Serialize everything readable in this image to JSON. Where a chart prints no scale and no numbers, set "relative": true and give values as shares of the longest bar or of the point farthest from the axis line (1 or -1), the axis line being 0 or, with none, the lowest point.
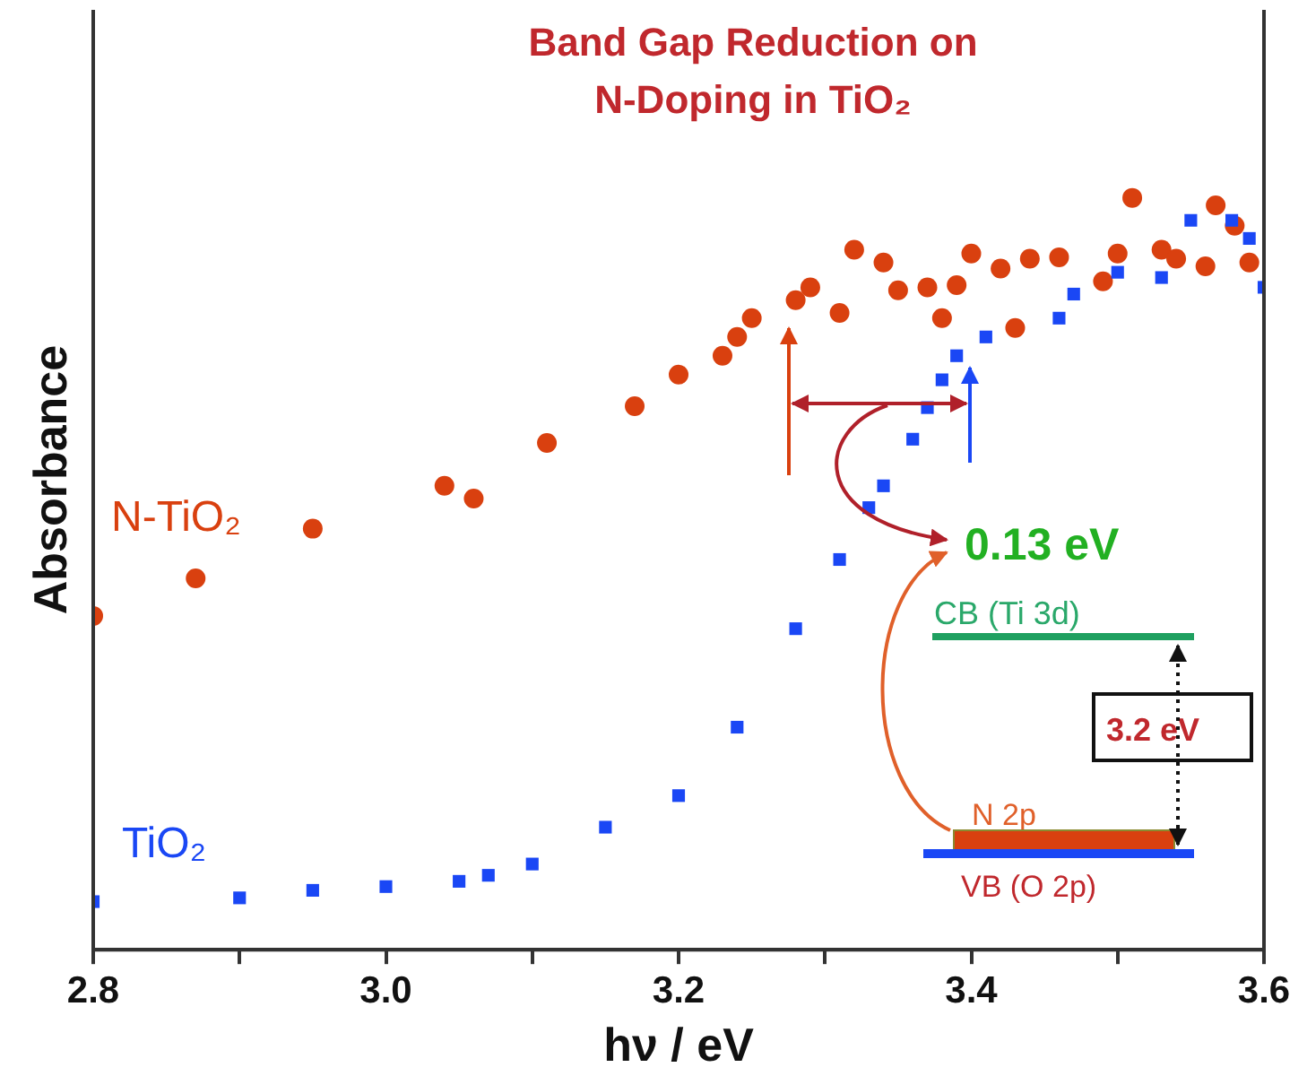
{
  "chart_data": {
    "type": "scatter",
    "title": "Band Gap Reduction on N-Doping in TiO₂",
    "xlabel": "hν / eV",
    "ylabel": "Absorbance",
    "relative": true,
    "grid": false,
    "legend": false,
    "xlim": [
      2.8,
      3.6
    ],
    "xticks": [
      2.8,
      {
        "value": 2.9,
        "label": null
      },
      {
        "value": 3,
        "label": "3.0"
      },
      {
        "value": 3.1,
        "label": null
      },
      3.2,
      {
        "value": 3.3,
        "label": null
      },
      3.4,
      {
        "value": 3.5,
        "label": null
      },
      3.6
    ],
    "series": [
      {
        "name": "N-TiO₂",
        "color": "#d9400f",
        "marker": "circle",
        "x": [
          2.8,
          2.87,
          2.95,
          3.04,
          3.06,
          3.11,
          3.17,
          3.2,
          3.23,
          3.24,
          3.25,
          3.28,
          3.29,
          3.31,
          3.32,
          3.34,
          3.35,
          3.37,
          3.38,
          3.39,
          3.4,
          3.42,
          3.43,
          3.44,
          3.46,
          3.49,
          3.5,
          3.51,
          3.53,
          3.54,
          3.56,
          3.567,
          3.58,
          3.59
        ],
        "values": [
          0.444,
          0.494,
          0.56,
          0.617,
          0.6,
          0.674,
          0.723,
          0.765,
          0.79,
          0.815,
          0.84,
          0.864,
          0.881,
          0.847,
          0.931,
          0.914,
          0.877,
          0.881,
          0.84,
          0.884,
          0.926,
          0.906,
          0.827,
          0.919,
          0.921,
          0.889,
          0.926,
          1,
          0.931,
          0.919,
          0.909,
          0.99,
          0.963,
          0.914
        ]
      },
      {
        "name": "TiO₂",
        "color": "#1a47f5",
        "marker": "square",
        "x": [
          2.8,
          2.9,
          2.95,
          3.0,
          3.05,
          3.07,
          3.1,
          3.15,
          3.2,
          3.24,
          3.28,
          3.31,
          3.33,
          3.34,
          3.36,
          3.37,
          3.38,
          3.39,
          3.41,
          3.46,
          3.47,
          3.5,
          3.53,
          3.55,
          3.578,
          3.59,
          3.6
        ],
        "values": [
          0.064,
          0.069,
          0.079,
          0.084,
          0.091,
          0.099,
          0.114,
          0.163,
          0.205,
          0.296,
          0.427,
          0.519,
          0.588,
          0.617,
          0.679,
          0.721,
          0.758,
          0.79,
          0.815,
          0.84,
          0.872,
          0.901,
          0.894,
          0.97,
          0.97,
          0.946,
          0.881
        ]
      }
    ],
    "annotations": [
      "0.13 eV",
      "CB (Ti 3d)",
      "3.2 eV",
      "N 2p",
      "VB (O 2p)"
    ]
  }
}
